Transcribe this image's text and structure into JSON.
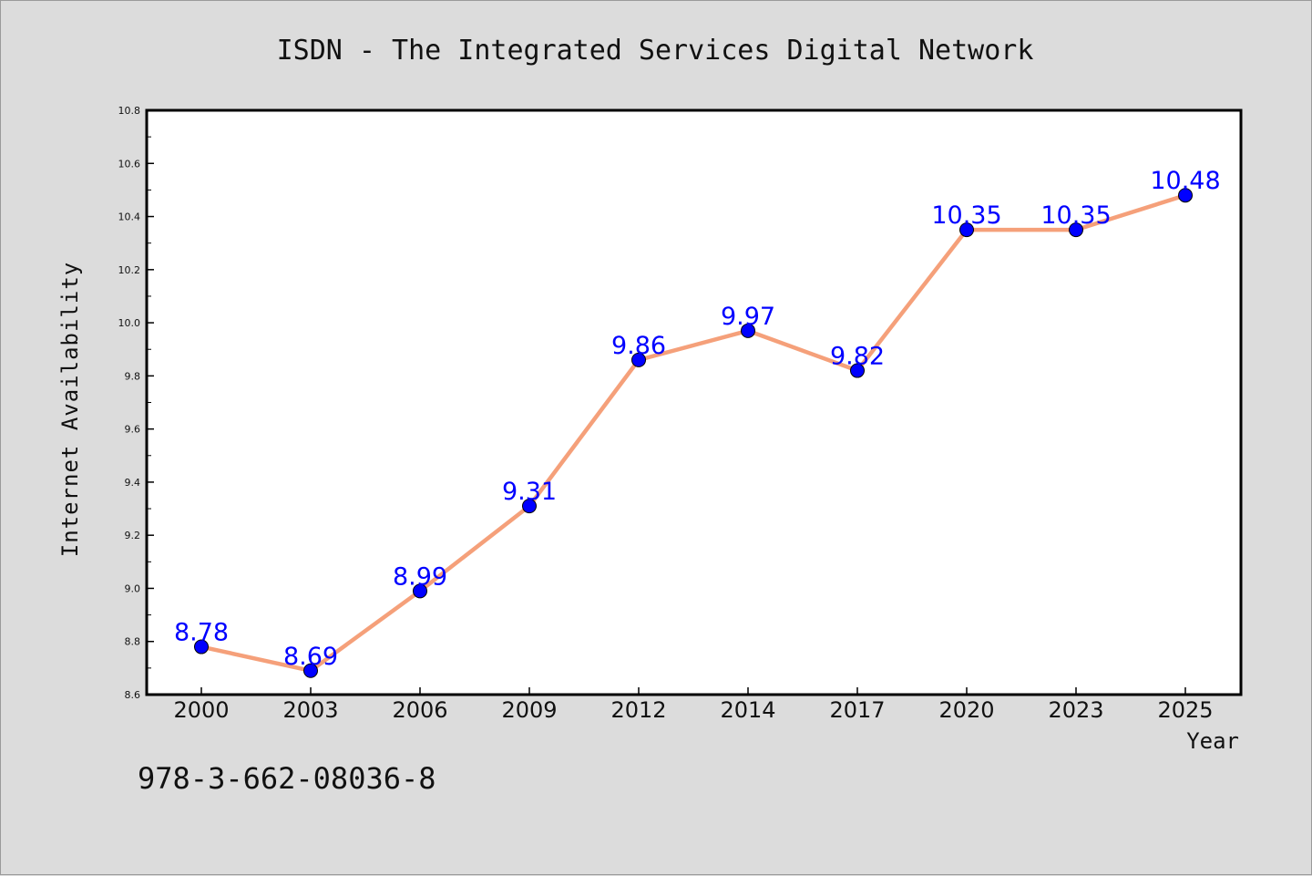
{
  "chart_data": {
    "type": "line",
    "title": "ISDN - The Integrated Services Digital Network",
    "xlabel": "Year",
    "ylabel": "Internet Availability",
    "categories": [
      "2000",
      "2003",
      "2006",
      "2009",
      "2012",
      "2014",
      "2017",
      "2020",
      "2023",
      "2025"
    ],
    "series": [
      {
        "values": [
          8.78,
          8.69,
          8.99,
          9.31,
          9.86,
          9.97,
          9.82,
          10.35,
          10.35,
          10.48
        ],
        "data_labels": [
          "8.78",
          "8.69",
          "8.99",
          "9.31",
          "9.86",
          "9.97",
          "9.82",
          "10.35",
          "10.35",
          "10.48"
        ],
        "line_color": "#f5a07a",
        "marker_color": "#0000ff",
        "label_color": "#0000ff"
      }
    ],
    "ylim": [
      8.6,
      10.8
    ],
    "yticks": [
      "8.6",
      "8.8",
      "9.0",
      "9.2",
      "9.4",
      "9.6",
      "9.8",
      "10.0",
      "10.2",
      "10.4",
      "10.6",
      "10.8"
    ],
    "grid": false,
    "legend": "none"
  },
  "footer_text": "978-3-662-08036-8",
  "colors": {
    "background": "#dcdcdc",
    "plot_area": "#ffffff"
  }
}
